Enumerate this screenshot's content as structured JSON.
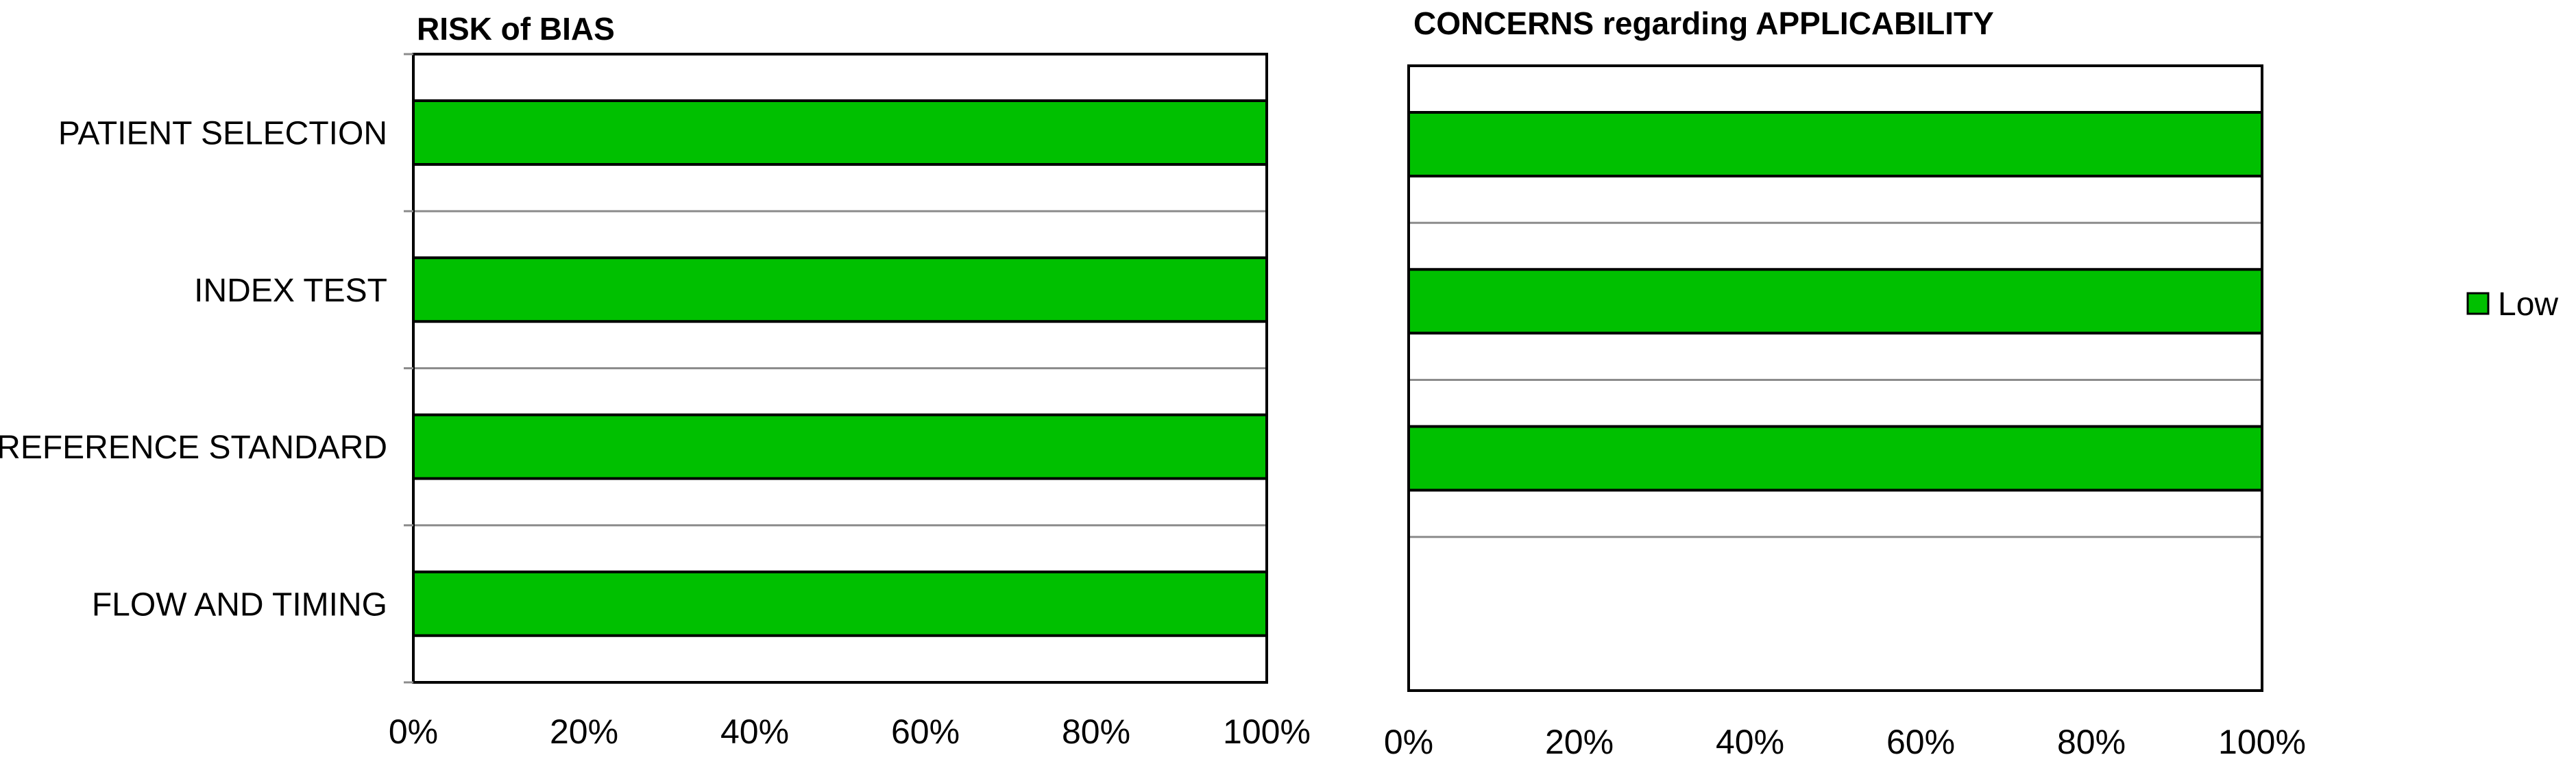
{
  "chart_data": [
    {
      "type": "bar",
      "orientation": "horizontal",
      "stacked": true,
      "title": "RISK of BIAS",
      "categories": [
        "PATIENT SELECTION",
        "INDEX TEST",
        "REFERENCE STANDARD",
        "FLOW AND TIMING"
      ],
      "series": [
        {
          "name": "Low",
          "values": [
            100,
            100,
            100,
            100
          ],
          "color": "#00c000"
        }
      ],
      "xlim": [
        0,
        100
      ],
      "xticks": [
        "0%",
        "20%",
        "40%",
        "60%",
        "80%",
        "100%"
      ],
      "grid": true
    },
    {
      "type": "bar",
      "orientation": "horizontal",
      "stacked": true,
      "title": "CONCERNS regarding APPLICABILITY",
      "categories": [
        "PATIENT SELECTION",
        "INDEX TEST",
        "REFERENCE STANDARD"
      ],
      "series": [
        {
          "name": "Low",
          "values": [
            100,
            100,
            100
          ],
          "color": "#00c000"
        }
      ],
      "xlim": [
        0,
        100
      ],
      "xticks": [
        "0%",
        "20%",
        "40%",
        "60%",
        "80%",
        "100%"
      ],
      "grid": true
    }
  ],
  "legend": {
    "position": "right",
    "items": [
      {
        "label": "Low",
        "color": "#00c000"
      }
    ]
  }
}
